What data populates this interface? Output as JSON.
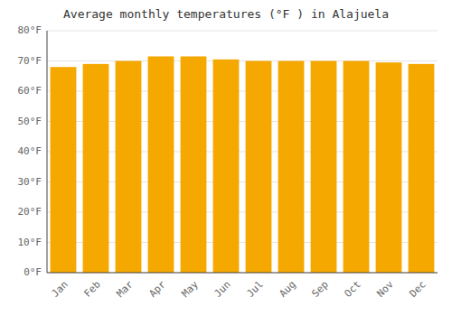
{
  "chart_data": {
    "type": "bar",
    "title": "Average monthly temperatures (°F ) in Alajuela",
    "categories": [
      "Jan",
      "Feb",
      "Mar",
      "Apr",
      "May",
      "Jun",
      "Jul",
      "Aug",
      "Sep",
      "Oct",
      "Nov",
      "Dec"
    ],
    "values": [
      68,
      69,
      70,
      71.5,
      71.5,
      70.5,
      70,
      70,
      70,
      70,
      69.5,
      69
    ],
    "color": "#F5A800",
    "ylim": [
      0,
      80
    ],
    "yticks": [
      {
        "value": 0,
        "label": "0°F"
      },
      {
        "value": 10,
        "label": "10°F"
      },
      {
        "value": 20,
        "label": "20°F"
      },
      {
        "value": 30,
        "label": "30°F"
      },
      {
        "value": 40,
        "label": "40°F"
      },
      {
        "value": 50,
        "label": "50°F"
      },
      {
        "value": 60,
        "label": "60°F"
      },
      {
        "value": 70,
        "label": "70°F"
      },
      {
        "value": 80,
        "label": "80°F"
      }
    ],
    "grid": true
  }
}
